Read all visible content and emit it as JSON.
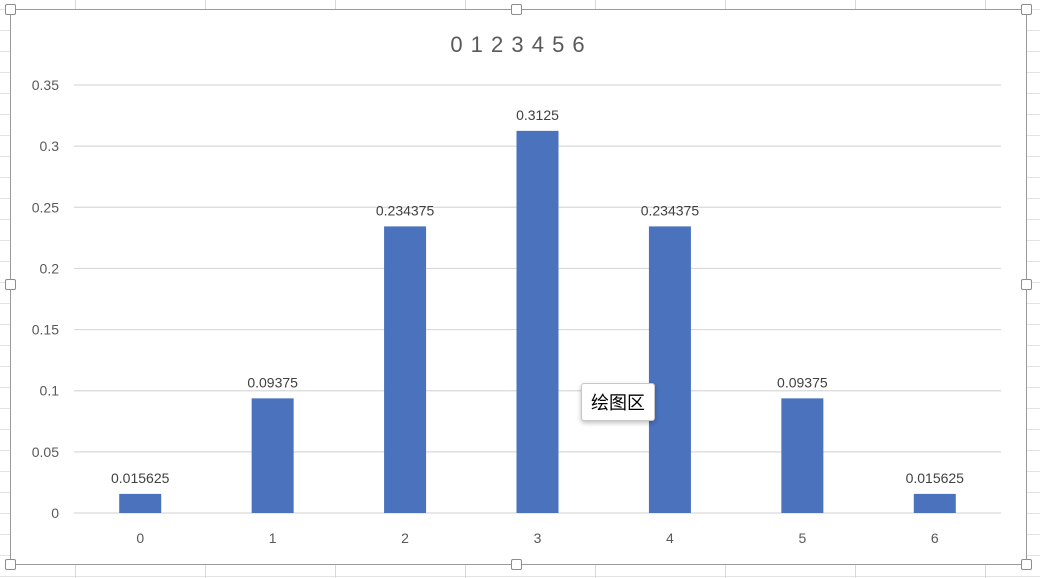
{
  "colors": {
    "bar": "#4a72bd",
    "gridline": "#d9d9d9",
    "axis_text": "#595959",
    "label_text": "#404040",
    "title_text": "#595959"
  },
  "tooltip": {
    "label": "绘图区"
  },
  "chart_data": {
    "type": "bar",
    "title": "0 1 2 3 4 5 6",
    "xlabel": "",
    "ylabel": "",
    "categories": [
      "0",
      "1",
      "2",
      "3",
      "4",
      "5",
      "6"
    ],
    "values": [
      0.015625,
      0.09375,
      0.234375,
      0.3125,
      0.234375,
      0.09375,
      0.015625
    ],
    "data_labels": [
      "0.015625",
      "0.09375",
      "0.234375",
      "0.3125",
      "0.234375",
      "0.09375",
      "0.015625"
    ],
    "ylim": [
      0,
      0.35
    ],
    "yticks": [
      "0",
      "0.05",
      "0.1",
      "0.15",
      "0.2",
      "0.25",
      "0.3",
      "0.35"
    ],
    "ytick_values": [
      0,
      0.05,
      0.1,
      0.15,
      0.2,
      0.25,
      0.3,
      0.35
    ],
    "grid": true,
    "legend": "none"
  }
}
